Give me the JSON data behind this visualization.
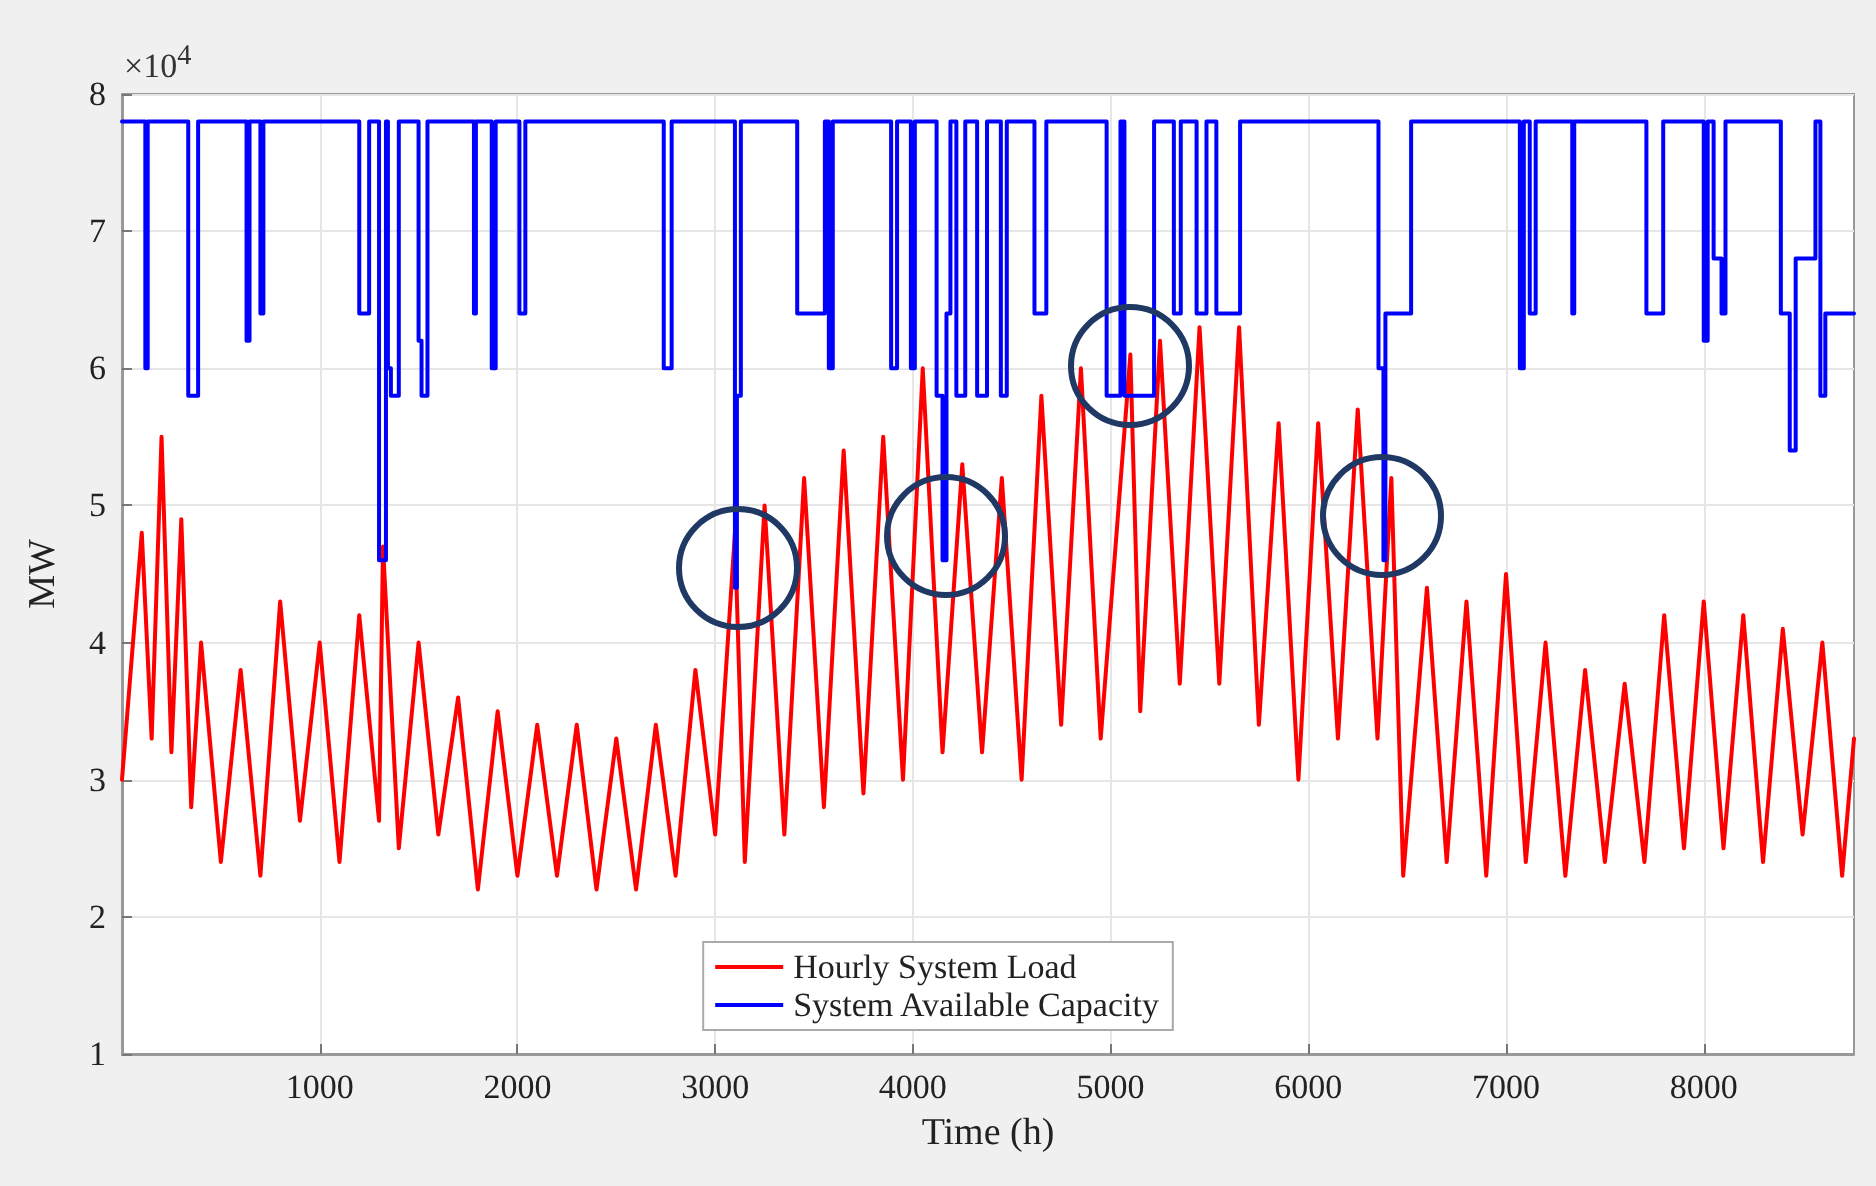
{
  "chart_data": {
    "type": "line",
    "xlabel": "Time (h)",
    "ylabel": "MW",
    "annotations": [
      "×10$^{4}$"
    ],
    "xlim": [
      0,
      8760
    ],
    "xticks": [
      1000,
      2000,
      3000,
      4000,
      5000,
      6000,
      7000,
      8000
    ],
    "ylim": [
      1,
      8
    ],
    "yticks": [
      1,
      2,
      3,
      4,
      5,
      6,
      7,
      8
    ],
    "grid": true,
    "legend": "bottom",
    "series": [
      {
        "name": "Hourly System Load",
        "color": "#ff0000",
        "x": [
          0,
          100,
          150,
          200,
          250,
          300,
          350,
          400,
          500,
          600,
          700,
          800,
          900,
          1000,
          1100,
          1200,
          1300,
          1320,
          1400,
          1500,
          1600,
          1700,
          1800,
          1900,
          2000,
          2100,
          2200,
          2300,
          2400,
          2500,
          2600,
          2700,
          2800,
          2900,
          3000,
          3100,
          3150,
          3250,
          3350,
          3450,
          3550,
          3650,
          3750,
          3850,
          3950,
          4050,
          4150,
          4250,
          4350,
          4450,
          4550,
          4650,
          4750,
          4850,
          4950,
          5100,
          5150,
          5250,
          5350,
          5450,
          5550,
          5650,
          5750,
          5850,
          5950,
          6050,
          6150,
          6250,
          6350,
          6420,
          6480,
          6600,
          6700,
          6800,
          6900,
          7000,
          7100,
          7200,
          7300,
          7400,
          7500,
          7600,
          7700,
          7800,
          7900,
          8000,
          8100,
          8200,
          8300,
          8400,
          8500,
          8600,
          8700,
          8760
        ],
        "values": [
          3.0,
          4.8,
          3.3,
          5.5,
          3.2,
          4.9,
          2.8,
          4.0,
          2.4,
          3.8,
          2.3,
          4.3,
          2.7,
          4.0,
          2.4,
          4.2,
          2.7,
          4.7,
          2.5,
          4.0,
          2.6,
          3.6,
          2.2,
          3.5,
          2.3,
          3.4,
          2.3,
          3.4,
          2.2,
          3.3,
          2.2,
          3.4,
          2.3,
          3.8,
          2.6,
          4.8,
          2.4,
          5.0,
          2.6,
          5.2,
          2.8,
          5.4,
          2.9,
          5.5,
          3.0,
          6.0,
          3.2,
          5.3,
          3.2,
          5.2,
          3.0,
          5.8,
          3.4,
          6.0,
          3.3,
          6.1,
          3.5,
          6.2,
          3.7,
          6.3,
          3.7,
          6.3,
          3.4,
          5.6,
          3.0,
          5.6,
          3.3,
          5.7,
          3.3,
          5.2,
          2.3,
          4.4,
          2.4,
          4.3,
          2.3,
          4.5,
          2.4,
          4.0,
          2.3,
          3.8,
          2.4,
          3.7,
          2.4,
          4.2,
          2.5,
          4.3,
          2.5,
          4.2,
          2.4,
          4.1,
          2.6,
          4.0,
          2.3,
          3.3
        ]
      },
      {
        "name": "System Available Capacity",
        "type": "step",
        "color": "#0000ff",
        "x": [
          0,
          118,
          130,
          335,
          385,
          630,
          645,
          700,
          715,
          1200,
          1250,
          1300,
          1335,
          1345,
          1360,
          1400,
          1500,
          1515,
          1545,
          1780,
          1790,
          1870,
          1890,
          2010,
          2040,
          2740,
          2780,
          3100,
          3110,
          3130,
          3415,
          3555,
          3575,
          3595,
          3890,
          3920,
          3990,
          4010,
          4120,
          4150,
          4170,
          4190,
          4220,
          4265,
          4325,
          4375,
          4445,
          4475,
          4615,
          4675,
          4980,
          5050,
          5070,
          5220,
          5320,
          5355,
          5435,
          5485,
          5535,
          5655,
          6355,
          6380,
          6390,
          6520,
          7070,
          7090,
          7120,
          7150,
          7335,
          7345,
          7710,
          7795,
          8000,
          8020,
          8050,
          8090,
          8110,
          8390,
          8435,
          8465,
          8565,
          8590,
          8615,
          8760
        ],
        "values": [
          7.8,
          6.0,
          7.8,
          5.8,
          7.8,
          6.2,
          7.8,
          6.4,
          7.8,
          6.4,
          7.8,
          4.6,
          7.8,
          6.0,
          5.8,
          7.8,
          6.2,
          5.8,
          7.8,
          6.4,
          7.8,
          6.0,
          7.8,
          6.4,
          7.8,
          6.0,
          7.8,
          4.4,
          5.8,
          7.8,
          6.4,
          7.8,
          6.0,
          7.8,
          6.0,
          7.8,
          6.0,
          7.8,
          5.8,
          4.6,
          6.4,
          7.8,
          5.8,
          7.8,
          5.8,
          7.8,
          5.8,
          7.8,
          6.4,
          7.8,
          5.8,
          7.8,
          5.8,
          7.8,
          6.4,
          7.8,
          6.4,
          7.8,
          6.4,
          7.8,
          6.0,
          4.6,
          6.4,
          7.8,
          6.0,
          7.8,
          6.4,
          7.8,
          6.4,
          7.8,
          6.4,
          7.8,
          6.2,
          7.8,
          6.8,
          6.4,
          7.8,
          6.4,
          5.4,
          6.8,
          7.8,
          5.8,
          6.4,
          6.4
        ]
      }
    ]
  }
}
